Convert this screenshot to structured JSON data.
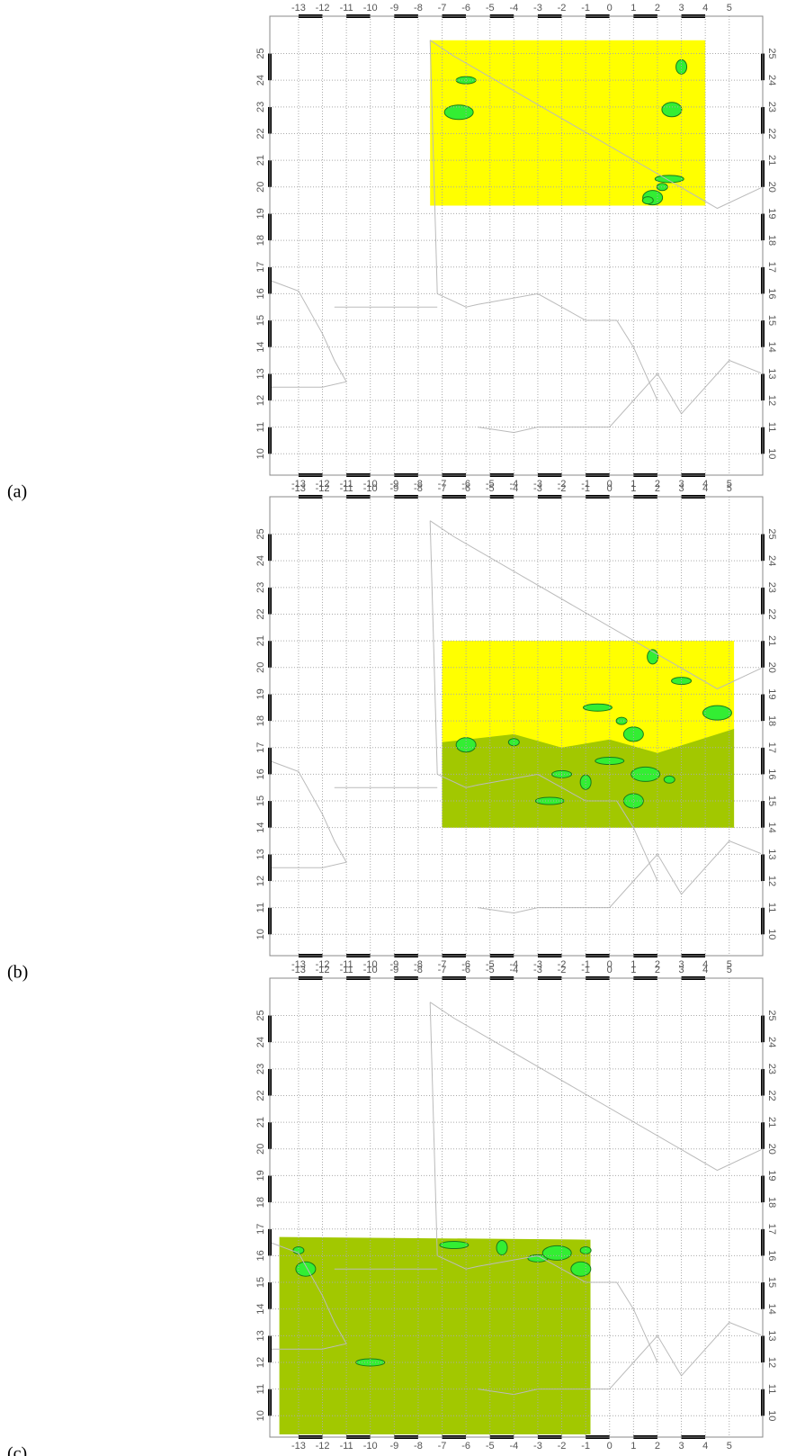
{
  "panels": [
    {
      "label": "(a)"
    },
    {
      "label": "(b)"
    },
    {
      "label": "(c)"
    }
  ],
  "xticks": [
    -13,
    -12,
    -11,
    -10,
    -9,
    -8,
    -7,
    -6,
    -5,
    -4,
    -3,
    -2,
    -1,
    0,
    1,
    2,
    3,
    4,
    5
  ],
  "yticks": [
    10,
    11,
    12,
    13,
    14,
    15,
    16,
    17,
    18,
    19,
    20,
    21,
    22,
    23,
    24,
    25
  ]
}
